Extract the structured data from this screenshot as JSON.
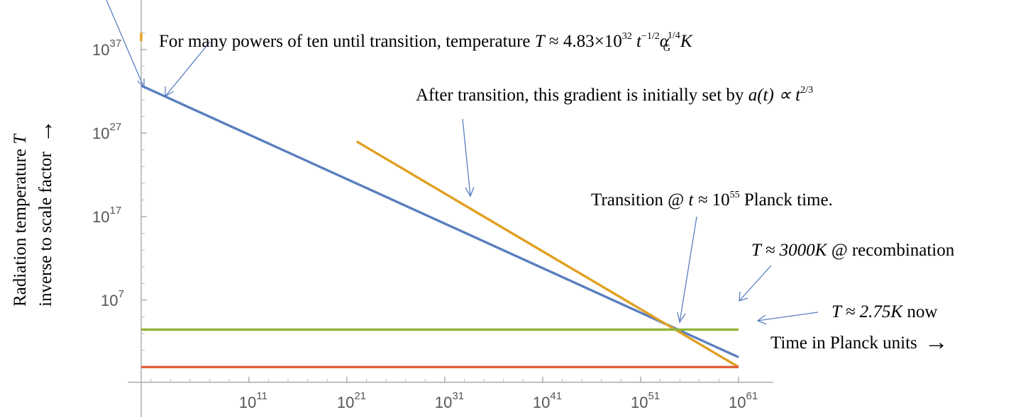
{
  "chart_data": {
    "type": "line",
    "x_scale": "log10",
    "y_scale": "log10",
    "xlim": [
      1,
      1e+61
    ],
    "ylim": [
      0.0001,
      1e+40
    ],
    "x_ticks": [
      {
        "base": "10",
        "exp": "11",
        "value": 100000000000.0
      },
      {
        "base": "10",
        "exp": "21",
        "value": 1e+21
      },
      {
        "base": "10",
        "exp": "31",
        "value": 1e+31
      },
      {
        "base": "10",
        "exp": "41",
        "value": 1e+41
      },
      {
        "base": "10",
        "exp": "51",
        "value": 1e+51
      },
      {
        "base": "10",
        "exp": "61",
        "value": 1e+61
      }
    ],
    "y_ticks": [
      {
        "base": "10",
        "exp": "7",
        "value": 10000000.0
      },
      {
        "base": "10",
        "exp": "17",
        "value": 1e+17
      },
      {
        "base": "10",
        "exp": "27",
        "value": 1e+27
      },
      {
        "base": "10",
        "exp": "37",
        "value": 1e+37
      }
    ],
    "grid": false,
    "series": [
      {
        "color": "#5b7fbf",
        "x": [
          1,
          1e+61
        ],
        "y": [
          4.83e+32,
          1.5
        ]
      },
      {
        "color": "#e0a020",
        "x": [
          1e+22,
          1e+61
        ],
        "y": [
          1e+26,
          0.1
        ]
      },
      {
        "color": "#e0a020",
        "x": [
          1,
          1
        ],
        "y": [
          1e+39,
          1e+38
        ]
      },
      {
        "color": "#8fb53a",
        "x": [
          1,
          1e+61
        ],
        "y": [
          3000,
          3000
        ]
      },
      {
        "color": "#e0603a",
        "x": [
          1,
          1e+61
        ],
        "y": [
          0.1,
          0.1
        ]
      }
    ],
    "ylabel_line1": "Radiation temperature",
    "ylabel_line1_math": "T",
    "ylabel_line2": "inverse to scale factor",
    "ylabel_arrow": "→",
    "xlabel": "Time in Planck units",
    "xlabel_arrow": "→"
  },
  "annotations": {
    "a1_text": "For many powers of ten until transition, temperature",
    "a1_math_T": "T",
    "a1_math_approx": " ≈ 4.83×10",
    "a1_sup1": "32",
    "a1_math_t": " t",
    "a1_sup2": "−1/2",
    "a1_math_alpha": "α",
    "a1_sup3": "1/4",
    "a1_sub": "G",
    "a1_math_K": "K",
    "a2_text": "After transition, this gradient is initially set by ",
    "a2_math": "a(t) ∝ t",
    "a2_sup": "2/3",
    "a3_text1": "Transition @ ",
    "a3_math": "t ≈ ",
    "a3_math_10": "10",
    "a3_sup": "55",
    "a3_text2": "  Planck time.",
    "a4_math": "T ≈ 3000K @",
    "a4_text": "  recombination",
    "a5_math": "T ≈ 2.75K",
    "a5_text": "  now"
  }
}
